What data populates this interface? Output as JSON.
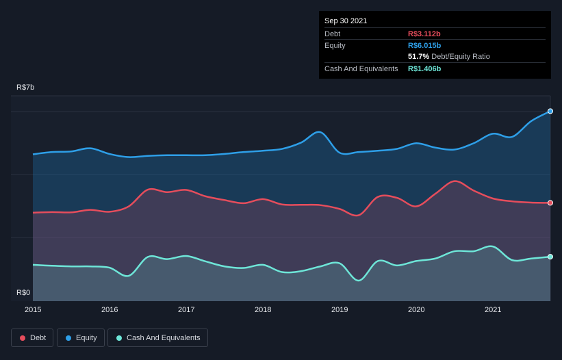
{
  "tooltip": {
    "date": "Sep 30 2021",
    "rows": {
      "debt": {
        "label": "Debt",
        "value": "R$3.112b"
      },
      "equity": {
        "label": "Equity",
        "value": "R$6.015b"
      },
      "ratio": {
        "value": "51.7%",
        "label": "Debt/Equity Ratio"
      },
      "cash": {
        "label": "Cash And Equivalents",
        "value": "R$1.406b"
      }
    }
  },
  "legend": {
    "debt": "Debt",
    "equity": "Equity",
    "cash": "Cash And Equivalents"
  },
  "colors": {
    "debt": "#e64d5c",
    "equity": "#2e9fe8",
    "cash": "#6ee6d8",
    "background": "#151b26"
  },
  "chart_data": {
    "type": "area",
    "y_axis_labels": [
      "R$7b",
      "R$0"
    ],
    "x_tick_labels": [
      "2015",
      "2016",
      "2017",
      "2018",
      "2019",
      "2020",
      "2021"
    ],
    "ylim": [
      0,
      6.5
    ],
    "grid": true,
    "legend_position": "bottom-left",
    "x": [
      2015.0,
      2015.25,
      2015.5,
      2015.75,
      2016.0,
      2016.25,
      2016.5,
      2016.75,
      2017.0,
      2017.25,
      2017.5,
      2017.75,
      2018.0,
      2018.25,
      2018.5,
      2018.75,
      2019.0,
      2019.25,
      2019.5,
      2019.75,
      2020.0,
      2020.25,
      2020.5,
      2020.75,
      2021.0,
      2021.25,
      2021.5,
      2021.75
    ],
    "series": [
      {
        "name": "Equity",
        "values": [
          4.65,
          4.72,
          4.74,
          4.84,
          4.66,
          4.56,
          4.6,
          4.62,
          4.62,
          4.62,
          4.66,
          4.72,
          4.76,
          4.82,
          5.02,
          5.35,
          4.7,
          4.72,
          4.76,
          4.82,
          5.0,
          4.86,
          4.8,
          5.0,
          5.3,
          5.2,
          5.7,
          6.015
        ]
      },
      {
        "name": "Debt",
        "values": [
          2.8,
          2.82,
          2.81,
          2.89,
          2.83,
          3.0,
          3.53,
          3.45,
          3.52,
          3.32,
          3.2,
          3.1,
          3.23,
          3.06,
          3.05,
          3.04,
          2.92,
          2.72,
          3.3,
          3.27,
          3.0,
          3.4,
          3.8,
          3.5,
          3.25,
          3.16,
          3.12,
          3.112
        ]
      },
      {
        "name": "Cash And Equivalents",
        "values": [
          1.15,
          1.12,
          1.1,
          1.1,
          1.06,
          0.8,
          1.4,
          1.33,
          1.43,
          1.26,
          1.1,
          1.05,
          1.15,
          0.92,
          0.95,
          1.1,
          1.2,
          0.65,
          1.27,
          1.13,
          1.27,
          1.35,
          1.58,
          1.58,
          1.73,
          1.3,
          1.35,
          1.406
        ]
      }
    ]
  }
}
